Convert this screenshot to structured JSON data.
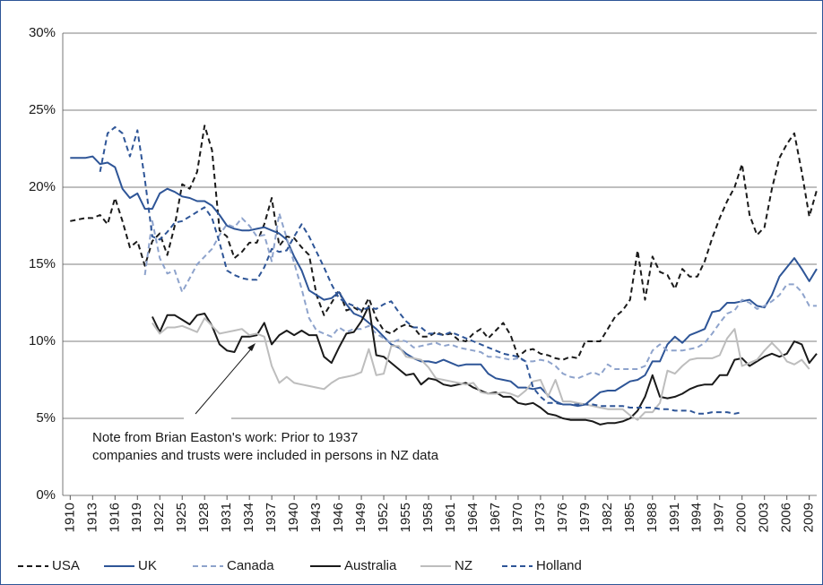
{
  "chart_data": {
    "type": "line",
    "x": [
      1910,
      1911,
      1912,
      1913,
      1914,
      1915,
      1916,
      1917,
      1918,
      1919,
      1920,
      1921,
      1922,
      1923,
      1924,
      1925,
      1926,
      1927,
      1928,
      1929,
      1930,
      1931,
      1932,
      1933,
      1934,
      1935,
      1936,
      1937,
      1938,
      1939,
      1940,
      1941,
      1942,
      1943,
      1944,
      1945,
      1946,
      1947,
      1948,
      1949,
      1950,
      1951,
      1952,
      1953,
      1954,
      1955,
      1956,
      1957,
      1958,
      1959,
      1960,
      1961,
      1962,
      1963,
      1964,
      1965,
      1966,
      1967,
      1968,
      1969,
      1970,
      1971,
      1972,
      1973,
      1974,
      1975,
      1976,
      1977,
      1978,
      1979,
      1980,
      1981,
      1982,
      1983,
      1984,
      1985,
      1986,
      1987,
      1988,
      1989,
      1990,
      1991,
      1992,
      1993,
      1994,
      1995,
      1996,
      1997,
      1998,
      1999,
      2000,
      2001,
      2002,
      2003,
      2004,
      2005,
      2006,
      2007,
      2008,
      2009,
      2010
    ],
    "xlim": [
      1909,
      2010
    ],
    "xticks": [
      1910,
      1913,
      1916,
      1919,
      1922,
      1925,
      1928,
      1931,
      1934,
      1937,
      1940,
      1943,
      1946,
      1949,
      1952,
      1955,
      1958,
      1961,
      1964,
      1967,
      1970,
      1973,
      1976,
      1979,
      1982,
      1985,
      1988,
      1991,
      1994,
      1997,
      2000,
      2003,
      2006,
      2009
    ],
    "ylim": [
      0,
      30
    ],
    "yticks": [
      {
        "value": 0,
        "label": "0%"
      },
      {
        "value": 5,
        "label": "5%"
      },
      {
        "value": 10,
        "label": "10%"
      },
      {
        "value": 15,
        "label": "15%"
      },
      {
        "value": 20,
        "label": "20%"
      },
      {
        "value": 25,
        "label": "25%"
      },
      {
        "value": 30,
        "label": "30%"
      }
    ],
    "grid": true,
    "legend": "bottom",
    "annotation": [
      "Note from Brian Easton's work: Prior to 1937",
      "companies and trusts were included in persons in NZ data"
    ],
    "series": [
      {
        "name": "USA",
        "color": "#1a1a1a",
        "dash": true,
        "values": [
          17.8,
          17.9,
          18.0,
          18.0,
          18.2,
          17.6,
          19.3,
          17.8,
          16.1,
          16.5,
          14.9,
          16.5,
          17.0,
          15.6,
          17.5,
          20.2,
          19.9,
          21.0,
          24.0,
          22.4,
          17.2,
          16.8,
          15.4,
          15.8,
          16.4,
          16.4,
          17.6,
          19.3,
          16.2,
          16.8,
          16.7,
          16.1,
          15.6,
          13.0,
          11.7,
          12.5,
          13.3,
          12.0,
          12.2,
          11.9,
          12.8,
          11.5,
          10.7,
          10.5,
          10.9,
          11.1,
          10.9,
          10.3,
          10.3,
          10.6,
          10.4,
          10.5,
          10.1,
          10.0,
          10.5,
          10.8,
          10.2,
          10.7,
          11.2,
          10.4,
          9.0,
          9.4,
          9.5,
          9.2,
          9.1,
          8.9,
          8.8,
          9.0,
          8.9,
          10.0,
          10.0,
          10.0,
          10.8,
          11.6,
          12.0,
          12.7,
          15.9,
          12.7,
          15.5,
          14.5,
          14.3,
          13.4,
          14.7,
          14.2,
          14.2,
          15.2,
          16.7,
          18.0,
          19.1,
          20.0,
          21.5,
          18.2,
          16.9,
          17.4,
          19.9,
          21.9,
          22.8,
          23.5,
          21.0,
          18.1,
          19.8
        ]
      },
      {
        "name": "UK",
        "color": "#2e5597",
        "dash": false,
        "values": [
          21.9,
          21.9,
          21.9,
          22.0,
          21.5,
          21.6,
          21.3,
          19.9,
          19.3,
          19.6,
          18.6,
          18.6,
          19.6,
          19.9,
          19.7,
          19.4,
          19.3,
          19.1,
          19.1,
          18.8,
          18.2,
          17.5,
          17.3,
          17.2,
          17.2,
          17.3,
          17.4,
          17.2,
          17.0,
          16.6,
          15.5,
          14.6,
          13.3,
          13.0,
          12.7,
          12.8,
          13.2,
          12.4,
          11.8,
          11.6,
          11.2,
          10.8,
          10.3,
          9.8,
          9.6,
          9.2,
          8.9,
          8.7,
          8.7,
          8.6,
          8.8,
          8.6,
          8.4,
          8.5,
          8.5,
          8.5,
          7.9,
          7.6,
          7.5,
          7.4,
          7.0,
          7.0,
          6.9,
          7.0,
          6.5,
          6.1,
          5.9,
          5.9,
          5.8,
          5.9,
          6.3,
          6.7,
          6.8,
          6.8,
          7.1,
          7.4,
          7.5,
          7.8,
          8.7,
          8.7,
          9.8,
          10.3,
          9.9,
          10.4,
          10.6,
          10.8,
          11.9,
          12.0,
          12.5,
          12.5,
          12.6,
          12.7,
          12.3,
          12.2,
          13.0,
          14.2,
          14.8,
          15.4,
          14.7,
          13.9,
          14.7
        ]
      },
      {
        "name": "Canada",
        "color": "#8ea3cc",
        "dash": true,
        "values": [
          null,
          null,
          null,
          null,
          null,
          null,
          null,
          null,
          null,
          null,
          14.3,
          17.8,
          15.4,
          14.4,
          14.6,
          13.2,
          14.1,
          15.0,
          15.5,
          16.0,
          16.9,
          17.6,
          17.4,
          18.0,
          17.5,
          16.8,
          16.9,
          15.2,
          18.3,
          16.7,
          15.1,
          13.4,
          11.5,
          10.7,
          10.5,
          10.3,
          10.9,
          10.6,
          10.8,
          10.8,
          11.0,
          10.5,
          10.2,
          9.9,
          10.1,
          10.0,
          9.6,
          9.7,
          9.8,
          9.9,
          9.7,
          9.8,
          9.6,
          9.5,
          9.4,
          9.3,
          9.0,
          9.0,
          8.9,
          8.8,
          8.9,
          8.7,
          8.7,
          8.8,
          8.7,
          8.4,
          7.9,
          7.7,
          7.6,
          7.8,
          8.0,
          7.8,
          8.5,
          8.2,
          8.2,
          8.2,
          8.2,
          8.4,
          9.4,
          9.8,
          9.4,
          9.4,
          9.4,
          9.5,
          9.6,
          9.9,
          10.5,
          11.2,
          11.8,
          12.0,
          12.7,
          12.5,
          12.1,
          12.3,
          12.6,
          13.0,
          13.7,
          13.7,
          13.2,
          12.3,
          12.3
        ]
      },
      {
        "name": "Australia",
        "color": "#1a1a1a",
        "dash": false,
        "values": [
          null,
          null,
          null,
          null,
          null,
          null,
          null,
          null,
          null,
          null,
          null,
          11.6,
          10.6,
          11.7,
          11.7,
          11.4,
          11.1,
          11.7,
          11.8,
          11.0,
          9.8,
          9.4,
          9.3,
          10.3,
          10.3,
          10.4,
          11.2,
          9.8,
          10.4,
          10.7,
          10.4,
          10.7,
          10.4,
          10.4,
          9.0,
          8.6,
          9.6,
          10.5,
          10.6,
          11.3,
          12.3,
          9.1,
          9.0,
          8.6,
          8.2,
          7.8,
          7.9,
          7.2,
          7.6,
          7.5,
          7.2,
          7.1,
          7.2,
          7.3,
          7.0,
          6.8,
          6.6,
          6.7,
          6.4,
          6.4,
          6.0,
          5.9,
          6.0,
          5.7,
          5.3,
          5.2,
          5.0,
          4.9,
          4.9,
          4.9,
          4.8,
          4.6,
          4.7,
          4.7,
          4.8,
          5.0,
          5.5,
          6.4,
          7.8,
          6.4,
          6.3,
          6.4,
          6.6,
          6.9,
          7.1,
          7.2,
          7.2,
          7.8,
          7.8,
          8.8,
          8.9,
          8.4,
          8.7,
          9.0,
          9.2,
          9.0,
          9.2,
          10.0,
          9.8,
          8.6,
          9.2
        ]
      },
      {
        "name": "NZ",
        "color": "#bdbdbd",
        "dash": false,
        "values": [
          null,
          null,
          null,
          null,
          null,
          null,
          null,
          null,
          null,
          null,
          null,
          11.2,
          10.5,
          10.9,
          10.9,
          11.0,
          10.8,
          10.6,
          11.5,
          11.0,
          10.5,
          10.6,
          10.7,
          10.8,
          10.4,
          10.5,
          10.3,
          8.4,
          7.3,
          7.7,
          7.3,
          7.2,
          7.1,
          7.0,
          6.9,
          7.3,
          7.6,
          7.7,
          7.8,
          8.0,
          9.5,
          7.8,
          7.9,
          9.7,
          9.7,
          9.0,
          8.9,
          8.8,
          8.3,
          7.6,
          7.5,
          7.4,
          7.3,
          7.2,
          7.3,
          6.7,
          6.6,
          6.6,
          6.7,
          6.6,
          6.4,
          6.8,
          7.4,
          7.5,
          6.4,
          7.5,
          6.1,
          6.1,
          6.0,
          5.9,
          5.8,
          5.7,
          5.6,
          5.6,
          5.6,
          5.2,
          4.9,
          5.4,
          5.4,
          6.0,
          8.1,
          7.9,
          8.4,
          8.8,
          8.9,
          8.9,
          8.9,
          9.1,
          10.2,
          10.8,
          8.4,
          8.6,
          8.8,
          9.4,
          9.9,
          9.4,
          8.7,
          8.5,
          8.8,
          8.2,
          null
        ]
      },
      {
        "name": "Holland",
        "color": "#2e5597",
        "dash": true,
        "values": [
          null,
          null,
          null,
          null,
          21.0,
          23.5,
          23.9,
          23.5,
          22.0,
          23.7,
          20.5,
          16.8,
          16.6,
          17.1,
          17.7,
          17.8,
          18.1,
          18.4,
          18.7,
          18.0,
          16.4,
          14.6,
          14.3,
          14.1,
          14.0,
          14.0,
          14.8,
          16.0,
          15.8,
          15.9,
          16.8,
          17.6,
          16.8,
          15.8,
          14.8,
          13.7,
          12.8,
          12.5,
          12.3,
          12.0,
          12.2,
          12.1,
          12.4,
          12.6,
          11.9,
          11.3,
          10.9,
          10.9,
          10.5,
          10.5,
          10.4,
          10.6,
          10.4,
          10.2,
          10.0,
          9.8,
          9.6,
          9.4,
          9.2,
          9.1,
          9.0,
          8.7,
          7.0,
          6.4,
          6.0,
          6.0,
          5.9,
          5.9,
          5.9,
          5.9,
          5.9,
          5.8,
          5.8,
          5.8,
          5.8,
          5.7,
          5.7,
          5.7,
          5.7,
          5.6,
          5.6,
          5.5,
          5.5,
          5.5,
          5.3,
          5.3,
          5.4,
          5.4,
          5.4,
          5.3,
          5.4,
          null,
          null,
          null,
          null,
          null,
          null,
          null,
          null,
          null,
          null
        ]
      }
    ]
  }
}
